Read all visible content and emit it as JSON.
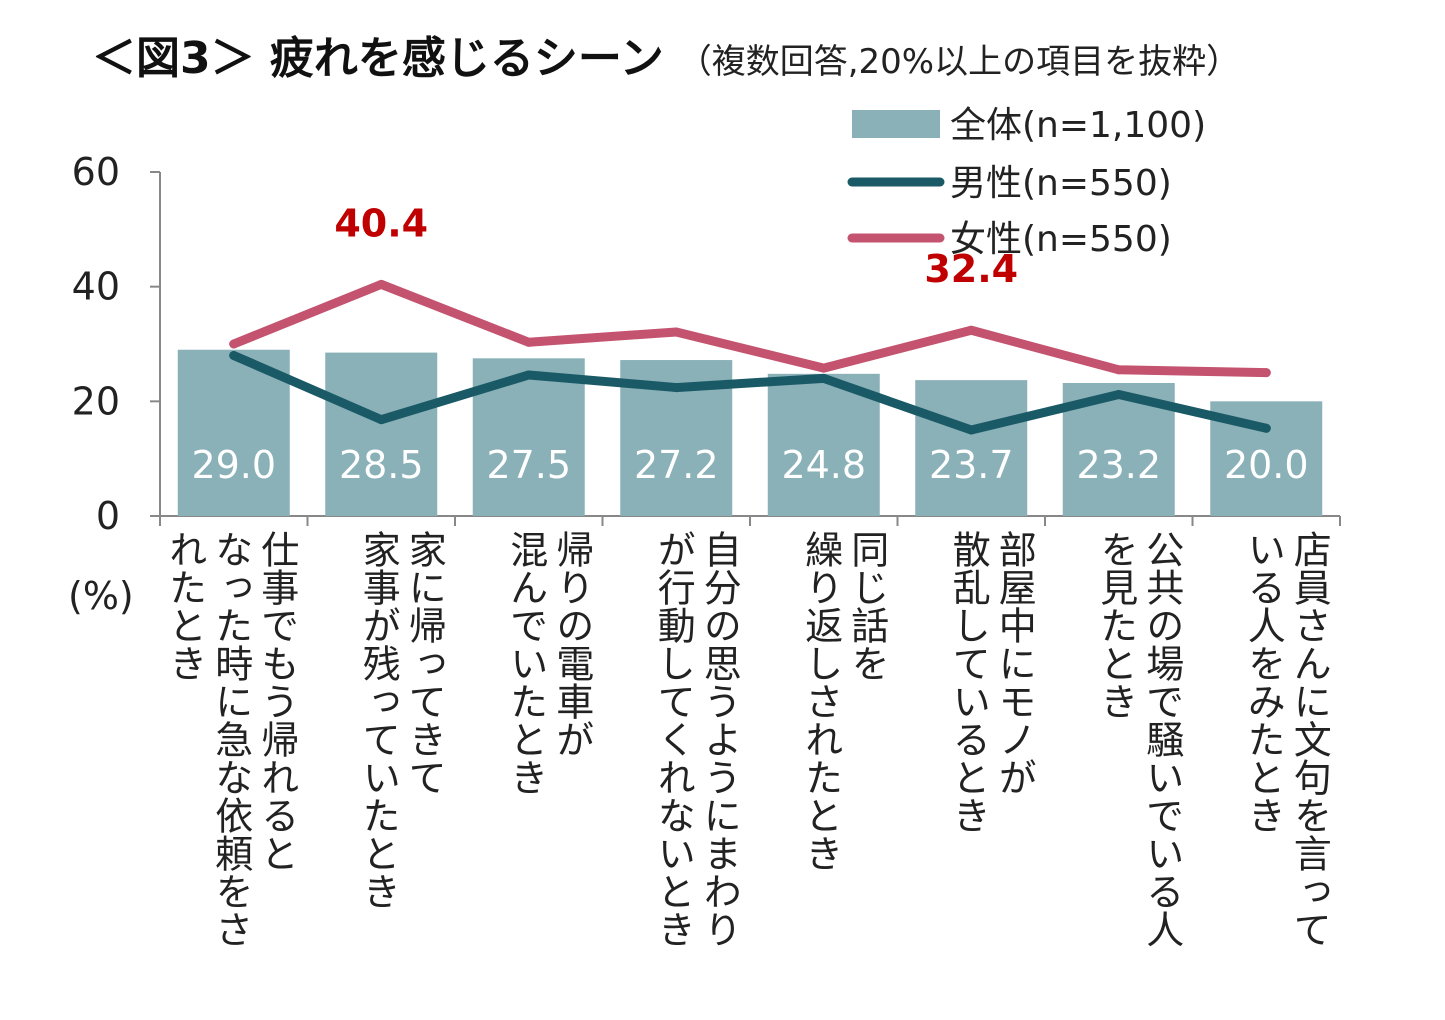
{
  "chart_data": {
    "type": "bar",
    "title": "＜図3＞ 疲れを感じるシーン",
    "subtitle": "（複数回答,20%以上の項目を抜粋）",
    "ylabel": "(%)",
    "ylim": [
      0,
      60
    ],
    "yticks": [
      0,
      20,
      40,
      60
    ],
    "categories": [
      "仕事でもう帰れると\nなった時に急な依頼をさ\nれたとき",
      "家に帰ってきて\n家事が残っていたとき",
      "帰りの電車が\n混んでいたとき",
      "自分の思うようにまわり\nが行動してくれないとき",
      "同じ話を\n繰り返しされたとき",
      "部屋中にモノが\n散乱しているとき",
      "公共の場で騒いでいる人\nを見たとき",
      "店員さんに文句を言って\nいる人をみたとき"
    ],
    "series": [
      {
        "name": "全体(n=1,100)",
        "kind": "bar",
        "color": "#8ab0b8",
        "values": [
          29.0,
          28.5,
          27.5,
          27.2,
          24.8,
          23.7,
          23.2,
          20.0
        ],
        "labels": [
          "29.0",
          "28.5",
          "27.5",
          "27.2",
          "24.8",
          "23.7",
          "23.2",
          "20.0"
        ]
      },
      {
        "name": "男性(n=550)",
        "kind": "line",
        "color": "#1a5a66",
        "values": [
          28.0,
          16.8,
          24.6,
          22.4,
          24.0,
          15.0,
          21.2,
          15.3
        ]
      },
      {
        "name": "女性(n=550)",
        "kind": "line",
        "color": "#c4536f",
        "values": [
          30.0,
          40.4,
          30.3,
          32.1,
          25.8,
          32.4,
          25.5,
          25.0
        ]
      }
    ],
    "annotations": [
      {
        "text": "40.4",
        "series": "女性(n=550)",
        "index": 1
      },
      {
        "text": "32.4",
        "series": "女性(n=550)",
        "index": 5
      }
    ],
    "legend_position": "top-right"
  }
}
